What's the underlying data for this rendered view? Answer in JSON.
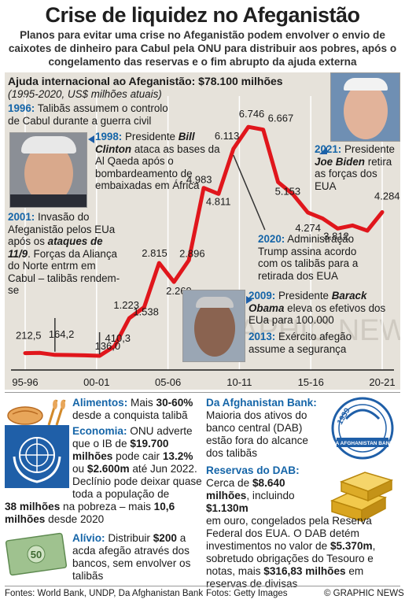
{
  "title": "Crise de liquidez no Afeganistão",
  "subtitle": "Planos para evitar uma crise no Afeganistão podem envolver o envio de caixotes de dinheiro para Cabul pela ONU para distribuir aos pobres, após o congelamento das reservas e o fim abrupto da ajuda externa",
  "chart_data": {
    "type": "line",
    "title": "Ajuda internacional ao Afeganistão: $78.100 milhões",
    "subtitle": "(1995-2020, US$ milhões atuais)",
    "x": [
      "1995-96",
      "1996-97",
      "1997-98",
      "1998-99",
      "1999-00",
      "2000-01",
      "2001-02",
      "2002-03",
      "2003-04",
      "2004-05",
      "2005-06",
      "2006-07",
      "2007-08",
      "2008-09",
      "2009-10",
      "2010-11",
      "2011-12",
      "2012-13",
      "2013-14",
      "2014-15",
      "2015-16",
      "2016-17",
      "2017-18",
      "2018-19",
      "2019-20"
    ],
    "values": [
      212.5,
      220,
      164.2,
      160,
      150,
      136.0,
      410.3,
      1223,
      1538,
      2815,
      2269,
      2896,
      4983,
      4811,
      6113,
      6746,
      6667,
      5153,
      4800,
      4274,
      4100,
      3812,
      3900,
      3750,
      4284
    ],
    "point_labels": [
      "212,5",
      "",
      "164,2",
      "",
      "",
      "136,0",
      "410,3",
      "1.223",
      "1.538",
      "2.815",
      "2.269",
      "2.896",
      "4.983",
      "4.811",
      "6.113",
      "6.746",
      "6.667",
      "5.153",
      "",
      "4.274",
      "",
      "3.812",
      "",
      "",
      "4.284"
    ],
    "x_ticks": [
      "95-96",
      "00-01",
      "05-06",
      "10-11",
      "15-16",
      "20-21"
    ],
    "ylim": [
      0,
      7500
    ],
    "color": "#e0161c"
  },
  "annotations": {
    "a1996_year": "1996:",
    "a1996_text": "Talibãs assumem o controlo de Cabul durante a guerra civil",
    "a1998_year": "1998:",
    "a1998_pre": "Presidente",
    "a1998_name": "Bill Clinton",
    "a1998_text": "ataca as bases da Al Qaeda após o bombardeamento de embaixadas em África",
    "a2001_year": "2001:",
    "a2001_pre": "Invasão do Afeganistão pelos EUa após os",
    "a2001_it": "ataques de 11/9",
    "a2001_post": ". Forças da Aliança do Norte entrm em Cabul – talibãs rendem-se",
    "a2009_year": "2009:",
    "a2009_pre": "Presidente",
    "a2009_name": "Barack Obama",
    "a2009_post": "eleva os efetivos dos EUa para 100.000",
    "a2013_year": "2013:",
    "a2013_text": "Exército afegão assume a segurança",
    "a2020_year": "2020:",
    "a2020_text": "Administração Trump assina acordo com os talibãs para a retirada dos EUA",
    "a2021_year": "2021:",
    "a2021_pre": "Presidente",
    "a2021_name": "Joe Biden",
    "a2021_post": "retira as forças dos EUA"
  },
  "watermark": "GRAPHIC NEWS",
  "panels": {
    "alimentos_h": "Alimentos:",
    "alimentos_t1": "Mais",
    "alimentos_b": "30-60%",
    "alimentos_t2": "desde a conquista talibã",
    "economia_h": "Economia:",
    "economia_t1": "ONU adverte que o IB de",
    "economia_b1": "$19.700 milhões",
    "economia_t2": "pode cair",
    "economia_b2": "13.2%",
    "economia_t3": "ou",
    "economia_b3": "$2.600m",
    "economia_t4": "até Jun 2022. Declínio pode deixar quase toda a população de",
    "economia_b4": "38 milhões",
    "economia_t5": "na pobreza – mais",
    "economia_b5": "10,6 milhões",
    "economia_t6": "desde 2020",
    "alivio_h": "Alívio:",
    "alivio_t1": "Distribuir",
    "alivio_b": "$200",
    "alivio_t2": "a acda afegão através dos bancos, sem envolver os talibãs",
    "dab_h": "Da Afghanistan Bank:",
    "dab_t": "Maioria dos ativos do banco central (DAB) estão fora do alcance dos talibãs",
    "reservas_h": "Reservas do DAB:",
    "reservas_t1": "Cerca de",
    "reservas_b1": "$8.640 milhões",
    "reservas_t2": ", incluindo",
    "reservas_b2": "$1.130m",
    "reservas_t3": "em ouro, congelados pela Reserva Federal dos EUA. O DAB detém investimentos no valor de",
    "reservas_b3": "$5.370m",
    "reservas_t4": ", sobretudo obrigações do Tesouro e notas, mais",
    "reservas_b4": "$316,83 milhões",
    "reservas_t5": "em reservas de divisas",
    "banknote_value": "50",
    "seal_year": "1939",
    "seal_text": "DA AFGHANISTAN BANK"
  },
  "footer": {
    "sources": "Fontes: World Bank, UNDP, Da Afghanistan Bank",
    "photos": "Fotos: Getty Images",
    "credit": "© GRAPHIC NEWS"
  }
}
